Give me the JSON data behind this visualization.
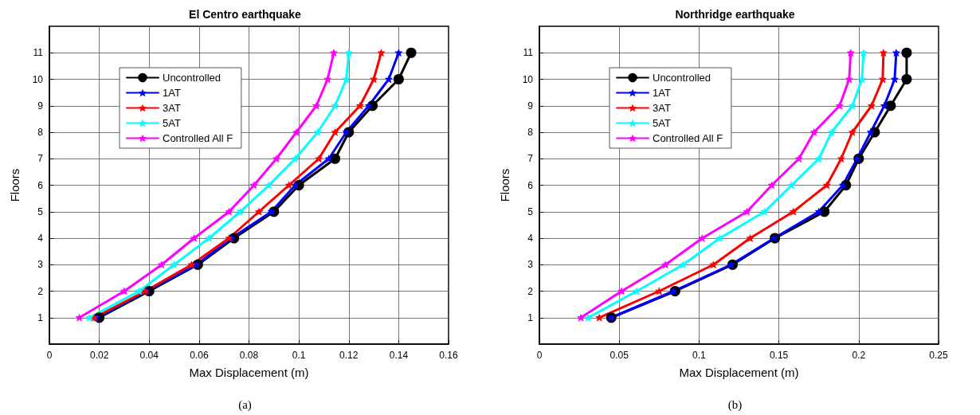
{
  "chart_data": [
    {
      "type": "line",
      "title": "El Centro earthquake",
      "xlabel": "Max Displacement (m)",
      "ylabel": "Floors",
      "annotations": [
        "(a)"
      ],
      "xlim": [
        0,
        0.16
      ],
      "xticks": [
        0,
        0.02,
        0.04,
        0.06,
        0.08,
        0.1,
        0.12,
        0.14,
        0.16
      ],
      "ylim": [
        0,
        12
      ],
      "yticks": [
        1,
        2,
        3,
        4,
        5,
        6,
        7,
        8,
        9,
        10,
        11
      ],
      "grid": true,
      "legend": "top left",
      "series": [
        {
          "name": "Uncontrolled",
          "color": "#000000",
          "marker": "circle",
          "x": [
            0.02,
            0.04,
            0.0595,
            0.074,
            0.09,
            0.1,
            0.1145,
            0.12,
            0.1295,
            0.14,
            0.145
          ],
          "values": [
            1,
            2,
            3,
            4,
            5,
            6,
            7,
            8,
            9,
            10,
            11
          ]
        },
        {
          "name": "1AT",
          "color": "#0000ff",
          "marker": "star",
          "x": [
            0.019,
            0.039,
            0.059,
            0.073,
            0.089,
            0.0985,
            0.112,
            0.119,
            0.128,
            0.136,
            0.14
          ],
          "values": [
            1,
            2,
            3,
            4,
            5,
            6,
            7,
            8,
            9,
            10,
            11
          ]
        },
        {
          "name": "3AT",
          "color": "#ff0000",
          "marker": "star",
          "x": [
            0.018,
            0.0384,
            0.057,
            0.072,
            0.084,
            0.096,
            0.108,
            0.1145,
            0.1245,
            0.13,
            0.133
          ],
          "values": [
            1,
            2,
            3,
            4,
            5,
            6,
            7,
            8,
            9,
            10,
            11
          ]
        },
        {
          "name": "5AT",
          "color": "#00ffff",
          "marker": "star",
          "x": [
            0.016,
            0.036,
            0.05,
            0.064,
            0.0765,
            0.088,
            0.0985,
            0.1075,
            0.1145,
            0.119,
            0.12
          ],
          "values": [
            1,
            2,
            3,
            4,
            5,
            6,
            7,
            8,
            9,
            10,
            11
          ]
        },
        {
          "name": "Controlled All F",
          "color": "#ff00ff",
          "marker": "star",
          "x": [
            0.012,
            0.03,
            0.045,
            0.058,
            0.072,
            0.082,
            0.091,
            0.099,
            0.107,
            0.1115,
            0.114
          ],
          "values": [
            1,
            2,
            3,
            4,
            5,
            6,
            7,
            8,
            9,
            10,
            11
          ]
        }
      ]
    },
    {
      "type": "line",
      "title": "Northridge earthquake",
      "xlabel": "Max Displacement (m)",
      "ylabel": "Floors",
      "annotations": [
        "(b)"
      ],
      "xlim": [
        0,
        0.25
      ],
      "xticks": [
        0,
        0.05,
        0.1,
        0.15,
        0.2,
        0.25
      ],
      "ylim": [
        0,
        12
      ],
      "yticks": [
        1,
        2,
        3,
        4,
        5,
        6,
        7,
        8,
        9,
        10,
        11
      ],
      "grid": true,
      "legend": "top left",
      "series": [
        {
          "name": "Uncontrolled",
          "color": "#000000",
          "marker": "circle",
          "x": [
            0.045,
            0.085,
            0.121,
            0.1475,
            0.1785,
            0.192,
            0.2,
            0.21,
            0.22,
            0.23,
            0.23
          ],
          "values": [
            1,
            2,
            3,
            4,
            5,
            6,
            7,
            8,
            9,
            10,
            11
          ]
        },
        {
          "name": "1AT",
          "color": "#0000ff",
          "marker": "star",
          "x": [
            0.045,
            0.084,
            0.12,
            0.147,
            0.175,
            0.19,
            0.199,
            0.2075,
            0.216,
            0.2225,
            0.2235
          ],
          "values": [
            1,
            2,
            3,
            4,
            5,
            6,
            7,
            8,
            9,
            10,
            11
          ]
        },
        {
          "name": "3AT",
          "color": "#ff0000",
          "marker": "star",
          "x": [
            0.0375,
            0.075,
            0.109,
            0.132,
            0.159,
            0.18,
            0.189,
            0.196,
            0.208,
            0.215,
            0.2155
          ],
          "values": [
            1,
            2,
            3,
            4,
            5,
            6,
            7,
            8,
            9,
            10,
            11
          ]
        },
        {
          "name": "5AT",
          "color": "#00ffff",
          "marker": "star",
          "x": [
            0.0305,
            0.061,
            0.09,
            0.113,
            0.141,
            0.158,
            0.175,
            0.183,
            0.196,
            0.202,
            0.203
          ],
          "values": [
            1,
            2,
            3,
            4,
            5,
            6,
            7,
            8,
            9,
            10,
            11
          ]
        },
        {
          "name": "Controlled All F",
          "color": "#ff00ff",
          "marker": "star",
          "x": [
            0.026,
            0.0515,
            0.079,
            0.102,
            0.13,
            0.1455,
            0.1625,
            0.172,
            0.188,
            0.194,
            0.195
          ],
          "values": [
            1,
            2,
            3,
            4,
            5,
            6,
            7,
            8,
            9,
            10,
            11
          ]
        }
      ]
    }
  ]
}
